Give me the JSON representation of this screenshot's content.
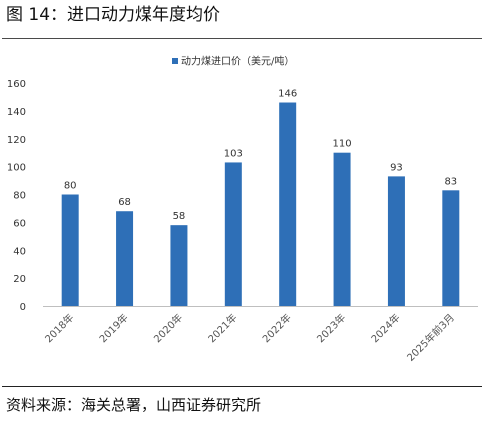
{
  "figure": {
    "title": "图 14：进口动力煤年度均价",
    "source": "资料来源：海关总署，山西证券研究所"
  },
  "chart_data": {
    "type": "bar",
    "title": "",
    "xlabel": "",
    "ylabel": "",
    "categories": [
      "2018年",
      "2019年",
      "2020年",
      "2021年",
      "2022年",
      "2023年",
      "2024年",
      "2025年前3月"
    ],
    "series": [
      {
        "name": "动力煤进口价（美元/吨）",
        "values": [
          80,
          68,
          58,
          103,
          146,
          110,
          93,
          83
        ],
        "color": "#2e6fb7"
      }
    ],
    "ylim": [
      0,
      160
    ],
    "yticks": [
      "0",
      "20",
      "40",
      "60",
      "80",
      "100",
      "120",
      "140",
      "160"
    ],
    "data_labels": [
      "80",
      "68",
      "58",
      "103",
      "146",
      "110",
      "93",
      "83"
    ],
    "grid": false,
    "legend": "top-center"
  }
}
